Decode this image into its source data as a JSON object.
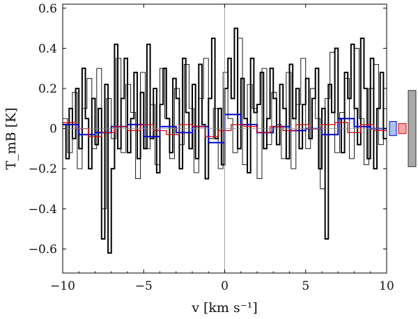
{
  "chart_data": {
    "type": "line",
    "title": "",
    "xlabel": "v [km s⁻¹]",
    "ylabel": "T_mB [K]",
    "xlim": [
      -10,
      10
    ],
    "ylim": [
      -0.72,
      0.62
    ],
    "xticks": [
      -10,
      -5,
      0,
      5,
      10
    ],
    "xtick_labels": [
      "−10",
      "−5",
      "0",
      "5",
      "10"
    ],
    "yticks": [
      -0.6,
      -0.4,
      -0.2,
      0,
      0.2,
      0.4,
      0.6
    ],
    "ytick_labels": [
      "−0.6",
      "−0.4",
      "−0.2",
      "0",
      "0.2",
      "0.4",
      "0.6"
    ],
    "grid": false,
    "colors": {
      "spectrum": "#000000",
      "blue": "#0000cc",
      "red": "#dd0000",
      "zero": "#888888",
      "gray_box": "#a9a9a9",
      "blue_box": "#aac4ee",
      "red_box": "#f4aaaa"
    },
    "series": [
      {
        "style": "step-thin",
        "x": [
          -10.0,
          -9.7,
          -9.4,
          -9.1,
          -8.8,
          -8.5,
          -8.2,
          -7.9,
          -7.6,
          -7.3,
          -7.0,
          -6.7,
          -6.4,
          -6.1,
          -5.8,
          -5.5,
          -5.2,
          -4.9,
          -4.6,
          -4.3,
          -4.0,
          -3.7,
          -3.4,
          -3.1,
          -2.8,
          -2.5,
          -2.2,
          -1.9,
          -1.6,
          -1.3,
          -1.0,
          -0.7,
          -0.4,
          -0.1,
          0.2,
          0.5,
          0.8,
          1.1,
          1.4,
          1.7,
          2.0,
          2.3,
          2.6,
          2.9,
          3.2,
          3.5,
          3.8,
          4.1,
          4.4,
          4.7,
          5.0,
          5.3,
          5.6,
          5.9,
          6.2,
          6.5,
          6.8,
          7.1,
          7.4,
          7.7,
          8.0,
          8.3,
          8.6,
          8.9,
          9.2,
          9.5,
          9.8
        ],
        "y": [
          0.05,
          -0.12,
          0.18,
          -0.2,
          0.1,
          0.25,
          -0.1,
          0.3,
          -0.4,
          0.15,
          -0.05,
          0.35,
          -0.12,
          0.22,
          0.08,
          -0.25,
          0.28,
          -0.1,
          0.12,
          -0.18,
          0.3,
          0.05,
          -0.15,
          0.2,
          -0.08,
          0.32,
          0.1,
          -0.22,
          0.15,
          0.35,
          -0.05,
          0.1,
          -0.2,
          0.28,
          0.05,
          -0.12,
          0.45,
          -0.18,
          0.22,
          0.1,
          -0.25,
          0.3,
          -0.08,
          0.18,
          0.02,
          -0.15,
          0.28,
          -0.2,
          0.12,
          0.35,
          -0.1,
          0.2,
          0.05,
          -0.3,
          0.15,
          0.38,
          -0.12,
          0.08,
          0.25,
          -0.15,
          0.4,
          0.05,
          -0.18,
          0.2,
          0.32,
          -0.08,
          0.1
        ]
      },
      {
        "style": "step-thick",
        "x": [
          -10.0,
          -9.8,
          -9.6,
          -9.4,
          -9.2,
          -9.0,
          -8.8,
          -8.6,
          -8.4,
          -8.2,
          -8.0,
          -7.8,
          -7.6,
          -7.4,
          -7.2,
          -7.0,
          -6.8,
          -6.6,
          -6.4,
          -6.2,
          -6.0,
          -5.8,
          -5.6,
          -5.4,
          -5.2,
          -5.0,
          -4.8,
          -4.6,
          -4.4,
          -4.2,
          -4.0,
          -3.8,
          -3.6,
          -3.4,
          -3.2,
          -3.0,
          -2.8,
          -2.6,
          -2.4,
          -2.2,
          -2.0,
          -1.8,
          -1.6,
          -1.4,
          -1.2,
          -1.0,
          -0.8,
          -0.6,
          -0.4,
          -0.2,
          0.0,
          0.2,
          0.4,
          0.6,
          0.8,
          1.0,
          1.2,
          1.4,
          1.6,
          1.8,
          2.0,
          2.2,
          2.4,
          2.6,
          2.8,
          3.0,
          3.2,
          3.4,
          3.6,
          3.8,
          4.0,
          4.2,
          4.4,
          4.6,
          4.8,
          5.0,
          5.2,
          5.4,
          5.6,
          5.8,
          6.0,
          6.2,
          6.4,
          6.6,
          6.8,
          7.0,
          7.2,
          7.4,
          7.6,
          7.8,
          8.0,
          8.2,
          8.4,
          8.6,
          8.8,
          9.0,
          9.2,
          9.4,
          9.6,
          9.8
        ],
        "y": [
          0.02,
          -0.15,
          0.1,
          -0.05,
          0.2,
          -0.1,
          0.3,
          0.05,
          -0.2,
          0.15,
          -0.08,
          0.1,
          -0.55,
          0.22,
          -0.62,
          -0.2,
          0.42,
          -0.1,
          0.15,
          0.35,
          -0.12,
          0.05,
          0.28,
          -0.15,
          0.18,
          -0.1,
          0.42,
          -0.05,
          0.2,
          -0.22,
          0.12,
          0.3,
          0.05,
          -0.12,
          0.25,
          0.15,
          -0.2,
          0.35,
          0.08,
          -0.1,
          0.22,
          -0.15,
          0.32,
          0.02,
          -0.25,
          0.15,
          0.45,
          -0.05,
          0.1,
          -0.18,
          0.2,
          0.35,
          0.15,
          0.5,
          -0.1,
          0.25,
          0.05,
          -0.22,
          0.35,
          0.08,
          0.12,
          0.28,
          -0.1,
          0.05,
          0.3,
          0.15,
          -0.08,
          0.22,
          0.1,
          -0.15,
          0.32,
          0.05,
          0.2,
          -0.1,
          0.12,
          0.25,
          -0.05,
          0.15,
          0.3,
          -0.2,
          0.1,
          -0.55,
          0.22,
          0.08,
          0.4,
          0.05,
          -0.12,
          0.28,
          0.15,
          0.42,
          0.1,
          -0.08,
          0.45,
          0.2,
          -0.15,
          0.35,
          -0.2,
          0.1,
          0.28,
          -0.05
        ]
      },
      {
        "style": "step-blue",
        "x": [
          -10.0,
          -9.0,
          -8.0,
          -7.0,
          -6.0,
          -5.0,
          -4.0,
          -3.0,
          -2.0,
          -1.0,
          0.0,
          1.0,
          2.0,
          3.0,
          4.0,
          5.0,
          6.0,
          7.0,
          8.0,
          9.0
        ],
        "y": [
          0.02,
          -0.03,
          -0.02,
          0.01,
          0.02,
          -0.04,
          0.01,
          -0.02,
          0.01,
          -0.07,
          0.07,
          0.02,
          -0.02,
          0.01,
          -0.01,
          0.0,
          -0.03,
          0.05,
          0.01,
          0.0
        ]
      },
      {
        "style": "step-red",
        "x": [
          -10.0,
          -9.2,
          -8.4,
          -7.6,
          -6.8,
          -6.0,
          -5.2,
          -4.4,
          -3.6,
          -2.8,
          -2.0,
          -1.2,
          -0.4,
          0.4,
          1.2,
          2.0,
          2.8,
          3.6,
          4.4,
          5.2,
          6.0,
          6.8,
          7.6,
          8.4,
          9.2
        ],
        "y": [
          0.03,
          0.0,
          -0.04,
          -0.02,
          0.01,
          -0.01,
          0.02,
          -0.01,
          -0.03,
          0.02,
          0.01,
          -0.04,
          -0.01,
          0.02,
          0.01,
          -0.02,
          0.01,
          -0.01,
          0.02,
          0.0,
          0.02,
          0.03,
          -0.02,
          0.02,
          -0.01
        ]
      }
    ],
    "side_boxes": [
      {
        "color_key": "blue_box",
        "ymin": -0.035,
        "ymax": 0.035
      },
      {
        "color_key": "red_box",
        "ymin": -0.025,
        "ymax": 0.025
      },
      {
        "color_key": "gray_box",
        "ymin": -0.19,
        "ymax": 0.19
      }
    ]
  }
}
